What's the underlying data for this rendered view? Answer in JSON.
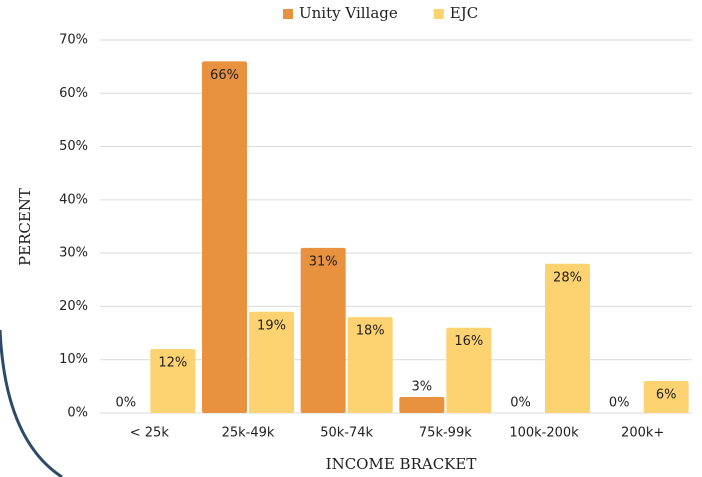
{
  "chart_data": {
    "type": "bar",
    "x_label": "INCOME BRACKET",
    "y_label": "PERCENT",
    "categories": [
      "< 25k",
      "25k-49k",
      "50k-74k",
      "75k-99k",
      "100k-200k",
      "200k+"
    ],
    "series": [
      {
        "name": "Unity Village",
        "color": "#e8913f",
        "values": [
          0,
          66,
          31,
          3,
          0,
          0
        ],
        "value_labels": [
          "0%",
          "66%",
          "31%",
          "3%",
          "0%",
          "0%"
        ]
      },
      {
        "name": "EJC",
        "color": "#fdd270",
        "values": [
          12,
          19,
          18,
          16,
          28,
          6
        ],
        "value_labels": [
          "12%",
          "19%",
          "18%",
          "16%",
          "28%",
          "6%"
        ]
      }
    ],
    "ylim": [
      0,
      70
    ],
    "yticks": [
      {
        "value": 0,
        "label": "0%"
      },
      {
        "value": 10,
        "label": "10%"
      },
      {
        "value": 20,
        "label": "20%"
      },
      {
        "value": 30,
        "label": "30%"
      },
      {
        "value": 40,
        "label": "40%"
      },
      {
        "value": 50,
        "label": "50%"
      },
      {
        "value": 60,
        "label": "60%"
      },
      {
        "value": 70,
        "label": "70%"
      }
    ],
    "grid": true,
    "legend": "top"
  }
}
